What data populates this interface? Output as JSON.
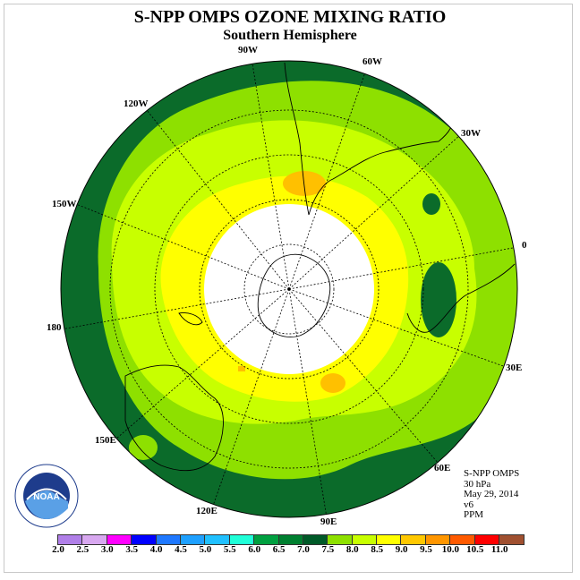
{
  "title": "S-NPP OMPS OZONE MIXING RATIO",
  "subtitle": "Southern Hemisphere",
  "lon_labels": [
    "90W",
    "60W",
    "30W",
    "0",
    "30E",
    "60E",
    "90E",
    "120E",
    "150E",
    "180",
    "150W",
    "120W"
  ],
  "info": [
    "S-NPP OMPS",
    "30 hPa",
    "May 29, 2014",
    "v6",
    "PPM"
  ],
  "logo_text": "NOAA",
  "colorbar": {
    "colors": [
      "#b07fe8",
      "#d8a8f0",
      "#ff00ff",
      "#0000ff",
      "#1e78ff",
      "#1ea0ff",
      "#20c0ff",
      "#20ffd8",
      "#00a040",
      "#008030",
      "#005a28",
      "#8ee000",
      "#c8ff00",
      "#ffff00",
      "#ffc800",
      "#ff9600",
      "#ff5a00",
      "#ff0000",
      "#a05030"
    ],
    "ticks": [
      "2.0",
      "2.5",
      "3.0",
      "3.5",
      "4.0",
      "4.5",
      "5.0",
      "5.5",
      "6.0",
      "6.5",
      "7.0",
      "7.5",
      "8.0",
      "8.5",
      "9.0",
      "9.5",
      "10.0",
      "10.5",
      "11.0"
    ]
  },
  "map_colors": {
    "outer": "#0b6b2a",
    "mid": "#8ee000",
    "inner": "#c8ff00",
    "yellow": "#ffff00",
    "orange": "#ffc000",
    "pole": "#ffffff"
  }
}
